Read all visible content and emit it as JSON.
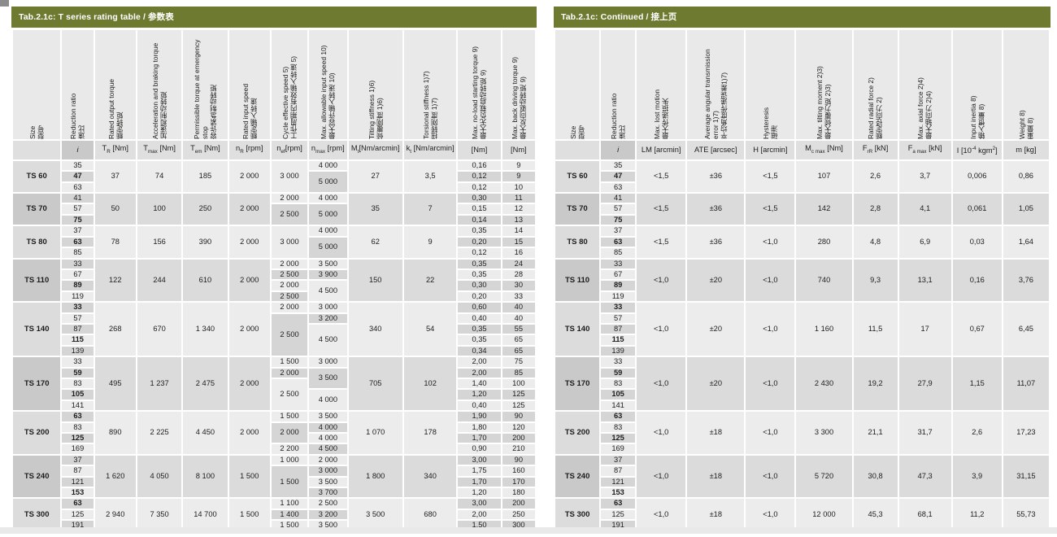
{
  "colors": {
    "title_bg": "#6f7a31",
    "title_fg": "#ffffff",
    "header_cell": "#e9e9e9",
    "unit_cell": "#dfdfdf",
    "unit_i": "#c9c9c9",
    "cell_light": "#ececec",
    "cell_dark": "#d5d5d5",
    "band_light": "#ececec",
    "band_dark": "#dbdbdb",
    "size_light": "#dcdcdc",
    "size_dark": "#c9c9c9",
    "text": "#1d1d1b"
  },
  "left_table": {
    "title": "Tab.2.1c: T series rating table / 参数表",
    "widths": [
      58,
      38,
      50,
      54,
      54,
      50,
      44,
      46,
      66,
      64,
      52,
      40
    ],
    "columns": [
      {
        "id": "size",
        "en": "Size",
        "zh": "型号",
        "unit": []
      },
      {
        "id": "ratio",
        "en": "Reduction ratio",
        "zh": "速比",
        "unit": [
          {
            "t": "i"
          }
        ]
      },
      {
        "id": "rated-output-torque",
        "en": "Rated output torque",
        "zh": "额定转矩",
        "unit": [
          {
            "t": "T"
          },
          {
            "t": "R",
            "s": "sub"
          },
          {
            "t": " [Nm]"
          }
        ]
      },
      {
        "id": "accel-braking-torque",
        "en": "Acceleration and braking torque",
        "zh": "加速和制动转矩",
        "unit": [
          {
            "t": "T"
          },
          {
            "t": "max",
            "s": "sub"
          },
          {
            "t": " [Nm]"
          }
        ]
      },
      {
        "id": "emergency-stop-torque",
        "en": "Permissible torque at emergency stop",
        "zh": "容许紧急制动转矩",
        "unit": [
          {
            "t": "T"
          },
          {
            "t": "em",
            "s": "sub"
          },
          {
            "t": " [Nm]"
          }
        ]
      },
      {
        "id": "rated-input-speed",
        "en": "Rated input speed",
        "zh": "额定输入转速",
        "unit": [
          {
            "t": "n"
          },
          {
            "t": "R",
            "s": "sub"
          },
          {
            "t": " [rpm]"
          }
        ]
      },
      {
        "id": "cycle-effective-speed",
        "en": "Cycle effective speed 5)",
        "zh": "工作周期内有效输入转速 5)",
        "unit": [
          {
            "t": "n"
          },
          {
            "t": "ef",
            "s": "sub"
          },
          {
            "t": "[rpm]"
          }
        ]
      },
      {
        "id": "max-input-speed",
        "en": "Max. allowable input speed 10)",
        "zh": "最大容许输入转速 10)",
        "unit": [
          {
            "t": "n"
          },
          {
            "t": "max",
            "s": "sub"
          },
          {
            "t": " [rpm]"
          }
        ]
      },
      {
        "id": "tilting-stiffness",
        "en": "Tilting stiffness 1)6)",
        "zh": "倾覆刚度 1)6)",
        "unit": [
          {
            "t": "M"
          },
          {
            "t": "t",
            "s": "sub"
          },
          {
            "t": "[Nm/arcmin]"
          }
        ]
      },
      {
        "id": "torsional-stiffness",
        "en": "Torsional stiffness 1)7)",
        "zh": "扭转刚度 1)7)",
        "unit": [
          {
            "t": "k"
          },
          {
            "t": "t",
            "s": "sub"
          },
          {
            "t": " [Nm/arcmin]"
          }
        ]
      },
      {
        "id": "no-load-starting-torque",
        "en": "Max. no-load starting torque 9)",
        "zh": "最大无负载启动转矩 9)",
        "unit": [
          {
            "t": "[Nm]"
          }
        ]
      },
      {
        "id": "back-driving-torque",
        "en": "Max. back driving torque 9)",
        "zh": "最大反向驱动转矩 9)",
        "unit": [
          {
            "t": "[Nm]"
          }
        ]
      }
    ],
    "groups": [
      {
        "size": "TS 60",
        "ratios": [
          {
            "v": "35"
          },
          {
            "v": "47",
            "bold": true
          },
          {
            "v": "63"
          }
        ],
        "tr": "37",
        "tmax": "74",
        "tem": "185",
        "nr": "2 000",
        "nef": [
          {
            "v": "3 000",
            "span": 3
          }
        ],
        "nmax": [
          {
            "v": "4 000",
            "span": 1
          },
          {
            "v": "5 000",
            "span": 2
          }
        ],
        "mt": "27",
        "kt": "3,5",
        "start": [
          "0,16",
          "0,12",
          "0,12"
        ],
        "back": [
          "9",
          "9",
          "10"
        ]
      },
      {
        "size": "TS 70",
        "ratios": [
          {
            "v": "41"
          },
          {
            "v": "57"
          },
          {
            "v": "75",
            "bold": true
          }
        ],
        "tr": "50",
        "tmax": "100",
        "tem": "250",
        "nr": "2 000",
        "nef": [
          {
            "v": "2 000",
            "span": 1
          },
          {
            "v": "2 500",
            "span": 2
          }
        ],
        "nmax": [
          {
            "v": "4 000",
            "span": 1
          },
          {
            "v": "5 000",
            "span": 2
          }
        ],
        "mt": "35",
        "kt": "7",
        "start": [
          "0,30",
          "0,15",
          "0,14"
        ],
        "back": [
          "11",
          "12",
          "13"
        ]
      },
      {
        "size": "TS 80",
        "ratios": [
          {
            "v": "37"
          },
          {
            "v": "63",
            "bold": true
          },
          {
            "v": "85"
          }
        ],
        "tr": "78",
        "tmax": "156",
        "tem": "390",
        "nr": "2 000",
        "nef": [
          {
            "v": "3 000",
            "span": 3
          }
        ],
        "nmax": [
          {
            "v": "4 000",
            "span": 1
          },
          {
            "v": "5 000",
            "span": 2
          }
        ],
        "mt": "62",
        "kt": "9",
        "start": [
          "0,35",
          "0,20",
          "0,12"
        ],
        "back": [
          "14",
          "15",
          "16"
        ]
      },
      {
        "size": "TS 110",
        "ratios": [
          {
            "v": "33"
          },
          {
            "v": "67"
          },
          {
            "v": "89",
            "bold": true
          },
          {
            "v": "119"
          }
        ],
        "tr": "122",
        "tmax": "244",
        "tem": "610",
        "nr": "2 000",
        "nef": [
          {
            "v": "2 000",
            "span": 1
          },
          {
            "v": "2 500",
            "span": 1
          },
          {
            "v": "2 000",
            "span": 1
          },
          {
            "v": "2 500",
            "span": 1
          }
        ],
        "nmax": [
          {
            "v": "3 500",
            "span": 1
          },
          {
            "v": "3 900",
            "span": 1
          },
          {
            "v": "4 500",
            "span": 2
          }
        ],
        "mt": "150",
        "kt": "22",
        "start": [
          "0,35",
          "0,35",
          "0,30",
          "0,20"
        ],
        "back": [
          "24",
          "28",
          "30",
          "33"
        ]
      },
      {
        "size": "TS 140",
        "ratios": [
          {
            "v": "33",
            "bold": true
          },
          {
            "v": "57"
          },
          {
            "v": "87"
          },
          {
            "v": "115",
            "bold": true
          },
          {
            "v": "139"
          }
        ],
        "tr": "268",
        "tmax": "670",
        "tem": "1 340",
        "nr": "2 000",
        "nef": [
          {
            "v": "2 000",
            "span": 1
          },
          {
            "v": "2 500",
            "span": 4
          }
        ],
        "nmax": [
          {
            "v": "3 000",
            "span": 1
          },
          {
            "v": "3 200",
            "span": 1
          },
          {
            "v": "4 500",
            "span": 3
          }
        ],
        "mt": "340",
        "kt": "54",
        "start": [
          "0,60",
          "0,40",
          "0,35",
          "0,35",
          "0,34"
        ],
        "back": [
          "40",
          "40",
          "55",
          "65",
          "65"
        ]
      },
      {
        "size": "TS 170",
        "ratios": [
          {
            "v": "33"
          },
          {
            "v": "59",
            "bold": true
          },
          {
            "v": "83"
          },
          {
            "v": "105",
            "bold": true
          },
          {
            "v": "141"
          }
        ],
        "tr": "495",
        "tmax": "1 237",
        "tem": "2 475",
        "nr": "2 000",
        "nef": [
          {
            "v": "1 500",
            "span": 1
          },
          {
            "v": "2 000",
            "span": 1
          },
          {
            "v": "2 500",
            "span": 3
          }
        ],
        "nmax": [
          {
            "v": "3 000",
            "span": 1
          },
          {
            "v": "3 500",
            "span": 2
          },
          {
            "v": "4 000",
            "span": 2
          }
        ],
        "mt": "705",
        "kt": "102",
        "start": [
          "2,00",
          "2,00",
          "1,40",
          "1,20",
          "0,40"
        ],
        "back": [
          "75",
          "85",
          "100",
          "125",
          "125"
        ]
      },
      {
        "size": "TS 200",
        "ratios": [
          {
            "v": "63",
            "bold": true
          },
          {
            "v": "83"
          },
          {
            "v": "125",
            "bold": true
          },
          {
            "v": "169"
          }
        ],
        "tr": "890",
        "tmax": "2 225",
        "tem": "4 450",
        "nr": "2 000",
        "nef": [
          {
            "v": "1 500",
            "span": 1
          },
          {
            "v": "2 000",
            "span": 2
          },
          {
            "v": "2 200",
            "span": 1
          }
        ],
        "nmax": [
          {
            "v": "3 500",
            "span": 1
          },
          {
            "v": "4 000",
            "span": 1
          },
          {
            "v": "4 000",
            "span": 1
          },
          {
            "v": "4 500",
            "span": 1
          }
        ],
        "mt": "1 070",
        "kt": "178",
        "start": [
          "1,90",
          "1,80",
          "1,70",
          "0,90"
        ],
        "back": [
          "90",
          "120",
          "200",
          "210"
        ]
      },
      {
        "size": "TS 240",
        "ratios": [
          {
            "v": "37"
          },
          {
            "v": "87"
          },
          {
            "v": "121"
          },
          {
            "v": "153",
            "bold": true
          }
        ],
        "tr": "1 620",
        "tmax": "4 050",
        "tem": "8 100",
        "nr": "1 500",
        "nef": [
          {
            "v": "1 000",
            "span": 1
          },
          {
            "v": "1 500",
            "span": 3
          }
        ],
        "nmax": [
          {
            "v": "2 000",
            "span": 1
          },
          {
            "v": "3 000",
            "span": 1
          },
          {
            "v": "3 500",
            "span": 1
          },
          {
            "v": "3 700",
            "span": 1
          }
        ],
        "mt": "1 800",
        "kt": "340",
        "start": [
          "3,00",
          "1,75",
          "1,70",
          "1,20"
        ],
        "back": [
          "90",
          "160",
          "170",
          "180"
        ]
      },
      {
        "size": "TS 300",
        "ratios": [
          {
            "v": "63",
            "bold": true
          },
          {
            "v": "125"
          },
          {
            "v": "191"
          }
        ],
        "tr": "2 940",
        "tmax": "7 350",
        "tem": "14 700",
        "nr": "1 500",
        "nef": [
          {
            "v": "1 100",
            "span": 1
          },
          {
            "v": "1 400",
            "span": 1
          },
          {
            "v": "1 500",
            "span": 1
          }
        ],
        "nmax": [
          {
            "v": "2 500",
            "span": 1
          },
          {
            "v": "3 200",
            "span": 1
          },
          {
            "v": "3 500",
            "span": 1
          }
        ],
        "mt": "3 500",
        "kt": "680",
        "start": [
          "3,00",
          "2,00",
          "1,50"
        ],
        "back": [
          "200",
          "250",
          "300"
        ]
      }
    ]
  },
  "right_table": {
    "title": "Tab.2.1c: Continued / 接上页",
    "widths": [
      54,
      42,
      60,
      70,
      60,
      68,
      54,
      64,
      60,
      56
    ],
    "columns": [
      {
        "id": "size",
        "en": "Size",
        "zh": "型号",
        "unit": []
      },
      {
        "id": "ratio",
        "en": "Reduction ratio",
        "zh": "速比",
        "unit": [
          {
            "t": "i"
          }
        ]
      },
      {
        "id": "lost-motion",
        "en": "Max. lost motion",
        "zh": "最大传递损失",
        "unit": [
          {
            "t": "LM [arcmin]"
          }
        ]
      },
      {
        "id": "angular-transmission-error",
        "en": "Average angular transmission error 1)7)",
        "zh": "平均角度传递误差1)7)",
        "unit": [
          {
            "t": "ATE [arcsec]"
          }
        ]
      },
      {
        "id": "hysteresis",
        "en": "Hysteresis",
        "zh": "磁滞",
        "unit": [
          {
            "t": "H [arcmin]"
          }
        ]
      },
      {
        "id": "max-tilting-moment",
        "en": "Max. tilting moment 2)3)",
        "zh": "最大倾覆力矩 2)3)",
        "unit": [
          {
            "t": "M"
          },
          {
            "t": "c max",
            "s": "sub"
          },
          {
            "t": " [Nm]"
          }
        ]
      },
      {
        "id": "rated-radial-force",
        "en": "Rated radial force 2)",
        "zh": "额定径向力 2)",
        "unit": [
          {
            "t": "F"
          },
          {
            "t": "rR",
            "s": "sub"
          },
          {
            "t": " [kN]"
          }
        ]
      },
      {
        "id": "max-axial-force",
        "en": "Max. axial force 2)4)",
        "zh": "最大轴向力 2)4)",
        "unit": [
          {
            "t": "F"
          },
          {
            "t": "a max",
            "s": "sub"
          },
          {
            "t": " [kN]"
          }
        ]
      },
      {
        "id": "input-inertia",
        "en": "Input inertia 8)",
        "zh": "输入惯量 8)",
        "unit": [
          {
            "t": "I [10"
          },
          {
            "t": "-4",
            "s": "sup"
          },
          {
            "t": " kgm"
          },
          {
            "t": "2",
            "s": "sup"
          },
          {
            "t": "]"
          }
        ]
      },
      {
        "id": "weight",
        "en": "Weight 8)",
        "zh": "重量 8)",
        "unit": [
          {
            "t": "m  [kg]"
          }
        ]
      }
    ],
    "groups": [
      {
        "size": "TS 60",
        "ratios": [
          {
            "v": "35"
          },
          {
            "v": "47",
            "bold": true
          },
          {
            "v": "63"
          }
        ],
        "vals": [
          "<1,5",
          "±36",
          "<1,5",
          "107",
          "2,6",
          "3,7",
          "0,006",
          "0,86"
        ]
      },
      {
        "size": "TS 70",
        "ratios": [
          {
            "v": "41"
          },
          {
            "v": "57"
          },
          {
            "v": "75",
            "bold": true
          }
        ],
        "vals": [
          "<1,5",
          "±36",
          "<1,5",
          "142",
          "2,8",
          "4,1",
          "0,061",
          "1,05"
        ]
      },
      {
        "size": "TS 80",
        "ratios": [
          {
            "v": "37"
          },
          {
            "v": "63",
            "bold": true
          },
          {
            "v": "85"
          }
        ],
        "vals": [
          "<1,5",
          "±36",
          "<1,0",
          "280",
          "4,8",
          "6,9",
          "0,03",
          "1,64"
        ]
      },
      {
        "size": "TS 110",
        "ratios": [
          {
            "v": "33"
          },
          {
            "v": "67"
          },
          {
            "v": "89",
            "bold": true
          },
          {
            "v": "119"
          }
        ],
        "vals": [
          "<1,0",
          "±20",
          "<1,0",
          "740",
          "9,3",
          "13,1",
          "0,16",
          "3,76"
        ]
      },
      {
        "size": "TS 140",
        "ratios": [
          {
            "v": "33",
            "bold": true
          },
          {
            "v": "57"
          },
          {
            "v": "87"
          },
          {
            "v": "115",
            "bold": true
          },
          {
            "v": "139"
          }
        ],
        "vals": [
          "<1,0",
          "±20",
          "<1,0",
          "1 160",
          "11,5",
          "17",
          "0,67",
          "6,45"
        ]
      },
      {
        "size": "TS 170",
        "ratios": [
          {
            "v": "33"
          },
          {
            "v": "59",
            "bold": true
          },
          {
            "v": "83"
          },
          {
            "v": "105",
            "bold": true
          },
          {
            "v": "141"
          }
        ],
        "vals": [
          "<1,0",
          "±20",
          "<1,0",
          "2 430",
          "19,2",
          "27,9",
          "1,15",
          "11,07"
        ]
      },
      {
        "size": "TS 200",
        "ratios": [
          {
            "v": "63",
            "bold": true
          },
          {
            "v": "83"
          },
          {
            "v": "125",
            "bold": true
          },
          {
            "v": "169"
          }
        ],
        "vals": [
          "<1,0",
          "±18",
          "<1,0",
          "3 300",
          "21,1",
          "31,7",
          "2,6",
          "17,23"
        ]
      },
      {
        "size": "TS 240",
        "ratios": [
          {
            "v": "37"
          },
          {
            "v": "87"
          },
          {
            "v": "121"
          },
          {
            "v": "153",
            "bold": true
          }
        ],
        "vals": [
          "<1,0",
          "±18",
          "<1,0",
          "5 720",
          "30,8",
          "47,3",
          "3,9",
          "31,15"
        ]
      },
      {
        "size": "TS 300",
        "ratios": [
          {
            "v": "63",
            "bold": true
          },
          {
            "v": "125"
          },
          {
            "v": "191"
          }
        ],
        "vals": [
          "<1,0",
          "±18",
          "<1,0",
          "12 000",
          "45,3",
          "68,1",
          "11,2",
          "55,73"
        ]
      }
    ]
  }
}
